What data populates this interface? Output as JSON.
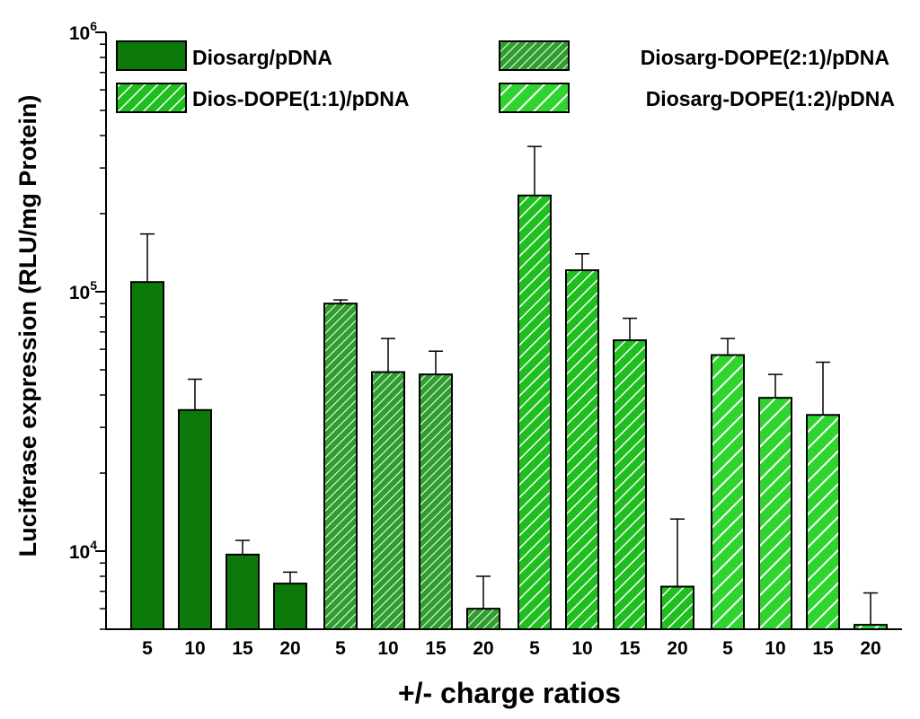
{
  "chart_data": {
    "type": "bar",
    "title": "",
    "xlabel": "+/- charge ratios",
    "ylabel": "Luciferase expression (RLU/mg Protein)",
    "yscale": "log",
    "ylim": [
      5000,
      1000000
    ],
    "y_tick_labels": [
      {
        "value": 10000,
        "base": "10",
        "exp": "4"
      },
      {
        "value": 100000,
        "base": "10",
        "exp": "5"
      },
      {
        "value": 1000000,
        "base": "10",
        "exp": "6"
      }
    ],
    "categories": [
      "5",
      "10",
      "15",
      "20"
    ],
    "series": [
      {
        "name": "Diosarg/pDNA",
        "pattern": "solid",
        "color": "#0b7a0b",
        "values": [
          109000,
          35000,
          9700,
          7500
        ],
        "errors": [
          58000,
          11000,
          1300,
          800
        ]
      },
      {
        "name": "Diosarg-DOPE(2:1)/pDNA",
        "pattern": "fine-hatch",
        "color": "#2f9e2f",
        "values": [
          90000,
          49000,
          48000,
          6000
        ],
        "errors": [
          3000,
          17000,
          11000,
          2000
        ]
      },
      {
        "name": "Dios-DOPE(1:1)/pDNA",
        "pattern": "hatch",
        "color": "#1fbf1f",
        "values": [
          235000,
          121000,
          65000,
          7300
        ],
        "errors": [
          128000,
          19000,
          14000,
          6000
        ]
      },
      {
        "name": "Diosarg-DOPE(1:2)/pDNA",
        "pattern": "wide-hatch",
        "color": "#2fd42f",
        "values": [
          57000,
          39000,
          33500,
          5200
        ],
        "errors": [
          9000,
          9000,
          20000,
          1700
        ]
      }
    ],
    "legend": {
      "placement": "top",
      "entries": [
        "Diosarg/pDNA",
        "Diosarg-DOPE(2:1)/pDNA",
        "Dios-DOPE(1:1)/pDNA",
        "Diosarg-DOPE(1:2)/pDNA"
      ]
    },
    "grid": false
  }
}
